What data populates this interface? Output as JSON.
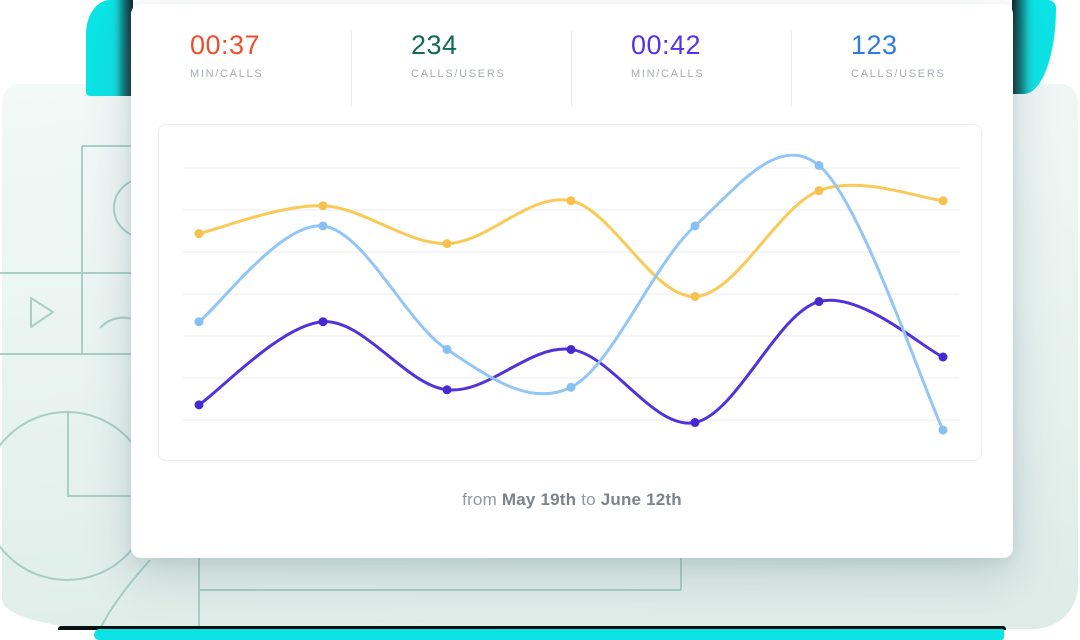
{
  "card": {
    "stats": [
      {
        "value": "00:37",
        "label": "MIN/CALLS",
        "color": "#ee4e2c"
      },
      {
        "value": "234",
        "label": "CALLS/USERS",
        "color": "#136957"
      },
      {
        "value": "00:42",
        "label": "MIN/CALLS",
        "color": "#5532e6"
      },
      {
        "value": "123",
        "label": "CALLS/USERS",
        "color": "#2e7ce0"
      }
    ],
    "caption": {
      "from_word": "from",
      "start_date": "May 19th",
      "to_word": "to",
      "end_date": "June 12th"
    }
  },
  "chart_data": {
    "type": "line",
    "title": "",
    "xlabel": "",
    "ylabel": "",
    "num_points": 7,
    "x": [
      1,
      2,
      3,
      4,
      5,
      6,
      7
    ],
    "series": [
      {
        "name": "yellow",
        "color": "#f9ca58",
        "point_color": "#f6c24d",
        "values": [
          74,
          85,
          70,
          87,
          49,
          91,
          87
        ]
      },
      {
        "name": "purple",
        "color": "#5233da",
        "point_color": "#4629cf",
        "values": [
          6,
          39,
          12,
          28,
          -1,
          47,
          25
        ]
      },
      {
        "name": "light_blue",
        "color": "#92c6f5",
        "point_color": "#88c0f3",
        "values": [
          39,
          77,
          28,
          13,
          77,
          101,
          -4
        ]
      }
    ],
    "ylim": [
      -8,
      108
    ],
    "gridlines": {
      "count": 7,
      "color": "#f2f2f5"
    },
    "legend": "none",
    "axis_tick_labels": "none",
    "note": "no axis labels shown; values are percent of span between bottom and top gridline"
  },
  "decor_colors": {
    "panel_mint": "#e9f4f0",
    "cyan": "#0be3e5",
    "outline_teal": "#9fc8bf",
    "bottom_edge_dark": "#081012"
  }
}
